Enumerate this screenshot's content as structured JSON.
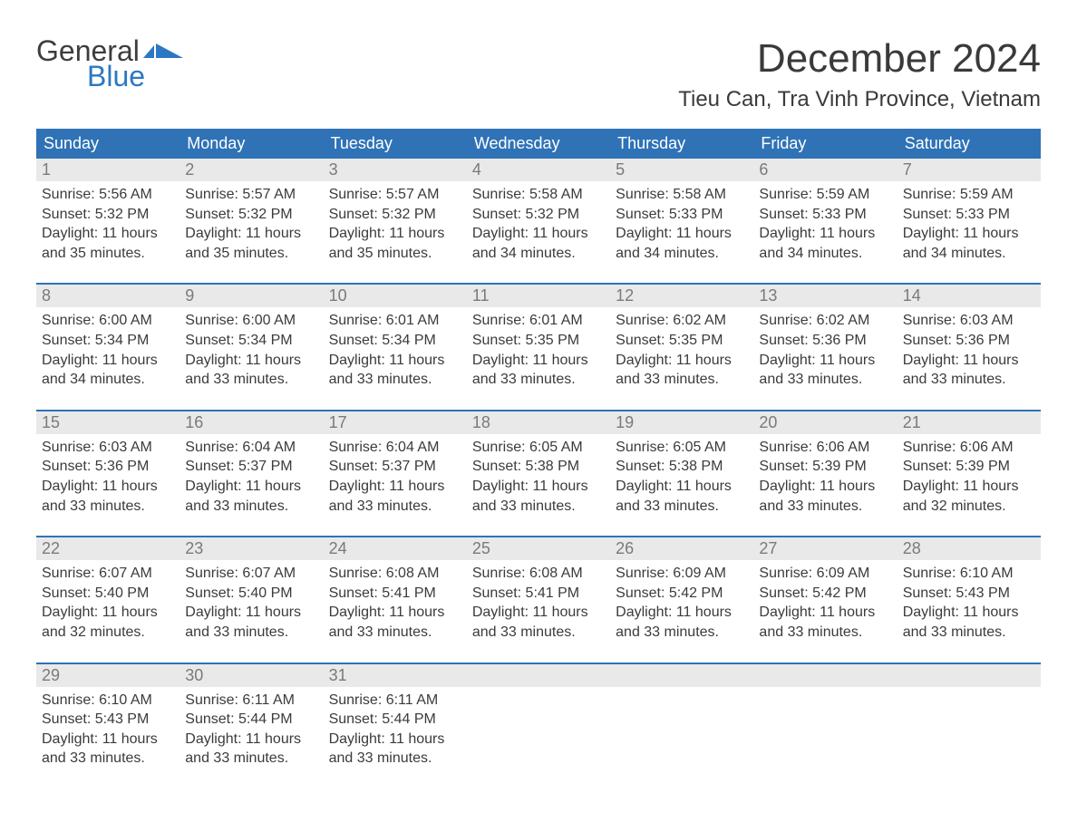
{
  "logo": {
    "text_general": "General",
    "text_blue": "Blue",
    "flag_color": "#2c78c2"
  },
  "title": "December 2024",
  "location": "Tieu Can, Tra Vinh Province, Vietnam",
  "colors": {
    "header_bg": "#2f72b6",
    "header_text": "#ffffff",
    "date_row_bg": "#e9e9e9",
    "date_num_color": "#7a7a7a",
    "week_border": "#2f72b6",
    "body_text": "#3b3b3b",
    "background": "#ffffff"
  },
  "typography": {
    "title_fontsize": 44,
    "location_fontsize": 24,
    "header_fontsize": 18,
    "cell_fontsize": 16
  },
  "day_headers": [
    "Sunday",
    "Monday",
    "Tuesday",
    "Wednesday",
    "Thursday",
    "Friday",
    "Saturday"
  ],
  "weeks": [
    [
      {
        "date": "1",
        "sunrise": "Sunrise: 5:56 AM",
        "sunset": "Sunset: 5:32 PM",
        "day1": "Daylight: 11 hours",
        "day2": "and 35 minutes."
      },
      {
        "date": "2",
        "sunrise": "Sunrise: 5:57 AM",
        "sunset": "Sunset: 5:32 PM",
        "day1": "Daylight: 11 hours",
        "day2": "and 35 minutes."
      },
      {
        "date": "3",
        "sunrise": "Sunrise: 5:57 AM",
        "sunset": "Sunset: 5:32 PM",
        "day1": "Daylight: 11 hours",
        "day2": "and 35 minutes."
      },
      {
        "date": "4",
        "sunrise": "Sunrise: 5:58 AM",
        "sunset": "Sunset: 5:32 PM",
        "day1": "Daylight: 11 hours",
        "day2": "and 34 minutes."
      },
      {
        "date": "5",
        "sunrise": "Sunrise: 5:58 AM",
        "sunset": "Sunset: 5:33 PM",
        "day1": "Daylight: 11 hours",
        "day2": "and 34 minutes."
      },
      {
        "date": "6",
        "sunrise": "Sunrise: 5:59 AM",
        "sunset": "Sunset: 5:33 PM",
        "day1": "Daylight: 11 hours",
        "day2": "and 34 minutes."
      },
      {
        "date": "7",
        "sunrise": "Sunrise: 5:59 AM",
        "sunset": "Sunset: 5:33 PM",
        "day1": "Daylight: 11 hours",
        "day2": "and 34 minutes."
      }
    ],
    [
      {
        "date": "8",
        "sunrise": "Sunrise: 6:00 AM",
        "sunset": "Sunset: 5:34 PM",
        "day1": "Daylight: 11 hours",
        "day2": "and 34 minutes."
      },
      {
        "date": "9",
        "sunrise": "Sunrise: 6:00 AM",
        "sunset": "Sunset: 5:34 PM",
        "day1": "Daylight: 11 hours",
        "day2": "and 33 minutes."
      },
      {
        "date": "10",
        "sunrise": "Sunrise: 6:01 AM",
        "sunset": "Sunset: 5:34 PM",
        "day1": "Daylight: 11 hours",
        "day2": "and 33 minutes."
      },
      {
        "date": "11",
        "sunrise": "Sunrise: 6:01 AM",
        "sunset": "Sunset: 5:35 PM",
        "day1": "Daylight: 11 hours",
        "day2": "and 33 minutes."
      },
      {
        "date": "12",
        "sunrise": "Sunrise: 6:02 AM",
        "sunset": "Sunset: 5:35 PM",
        "day1": "Daylight: 11 hours",
        "day2": "and 33 minutes."
      },
      {
        "date": "13",
        "sunrise": "Sunrise: 6:02 AM",
        "sunset": "Sunset: 5:36 PM",
        "day1": "Daylight: 11 hours",
        "day2": "and 33 minutes."
      },
      {
        "date": "14",
        "sunrise": "Sunrise: 6:03 AM",
        "sunset": "Sunset: 5:36 PM",
        "day1": "Daylight: 11 hours",
        "day2": "and 33 minutes."
      }
    ],
    [
      {
        "date": "15",
        "sunrise": "Sunrise: 6:03 AM",
        "sunset": "Sunset: 5:36 PM",
        "day1": "Daylight: 11 hours",
        "day2": "and 33 minutes."
      },
      {
        "date": "16",
        "sunrise": "Sunrise: 6:04 AM",
        "sunset": "Sunset: 5:37 PM",
        "day1": "Daylight: 11 hours",
        "day2": "and 33 minutes."
      },
      {
        "date": "17",
        "sunrise": "Sunrise: 6:04 AM",
        "sunset": "Sunset: 5:37 PM",
        "day1": "Daylight: 11 hours",
        "day2": "and 33 minutes."
      },
      {
        "date": "18",
        "sunrise": "Sunrise: 6:05 AM",
        "sunset": "Sunset: 5:38 PM",
        "day1": "Daylight: 11 hours",
        "day2": "and 33 minutes."
      },
      {
        "date": "19",
        "sunrise": "Sunrise: 6:05 AM",
        "sunset": "Sunset: 5:38 PM",
        "day1": "Daylight: 11 hours",
        "day2": "and 33 minutes."
      },
      {
        "date": "20",
        "sunrise": "Sunrise: 6:06 AM",
        "sunset": "Sunset: 5:39 PM",
        "day1": "Daylight: 11 hours",
        "day2": "and 33 minutes."
      },
      {
        "date": "21",
        "sunrise": "Sunrise: 6:06 AM",
        "sunset": "Sunset: 5:39 PM",
        "day1": "Daylight: 11 hours",
        "day2": "and 32 minutes."
      }
    ],
    [
      {
        "date": "22",
        "sunrise": "Sunrise: 6:07 AM",
        "sunset": "Sunset: 5:40 PM",
        "day1": "Daylight: 11 hours",
        "day2": "and 32 minutes."
      },
      {
        "date": "23",
        "sunrise": "Sunrise: 6:07 AM",
        "sunset": "Sunset: 5:40 PM",
        "day1": "Daylight: 11 hours",
        "day2": "and 33 minutes."
      },
      {
        "date": "24",
        "sunrise": "Sunrise: 6:08 AM",
        "sunset": "Sunset: 5:41 PM",
        "day1": "Daylight: 11 hours",
        "day2": "and 33 minutes."
      },
      {
        "date": "25",
        "sunrise": "Sunrise: 6:08 AM",
        "sunset": "Sunset: 5:41 PM",
        "day1": "Daylight: 11 hours",
        "day2": "and 33 minutes."
      },
      {
        "date": "26",
        "sunrise": "Sunrise: 6:09 AM",
        "sunset": "Sunset: 5:42 PM",
        "day1": "Daylight: 11 hours",
        "day2": "and 33 minutes."
      },
      {
        "date": "27",
        "sunrise": "Sunrise: 6:09 AM",
        "sunset": "Sunset: 5:42 PM",
        "day1": "Daylight: 11 hours",
        "day2": "and 33 minutes."
      },
      {
        "date": "28",
        "sunrise": "Sunrise: 6:10 AM",
        "sunset": "Sunset: 5:43 PM",
        "day1": "Daylight: 11 hours",
        "day2": "and 33 minutes."
      }
    ],
    [
      {
        "date": "29",
        "sunrise": "Sunrise: 6:10 AM",
        "sunset": "Sunset: 5:43 PM",
        "day1": "Daylight: 11 hours",
        "day2": "and 33 minutes."
      },
      {
        "date": "30",
        "sunrise": "Sunrise: 6:11 AM",
        "sunset": "Sunset: 5:44 PM",
        "day1": "Daylight: 11 hours",
        "day2": "and 33 minutes."
      },
      {
        "date": "31",
        "sunrise": "Sunrise: 6:11 AM",
        "sunset": "Sunset: 5:44 PM",
        "day1": "Daylight: 11 hours",
        "day2": "and 33 minutes."
      },
      null,
      null,
      null,
      null
    ]
  ]
}
